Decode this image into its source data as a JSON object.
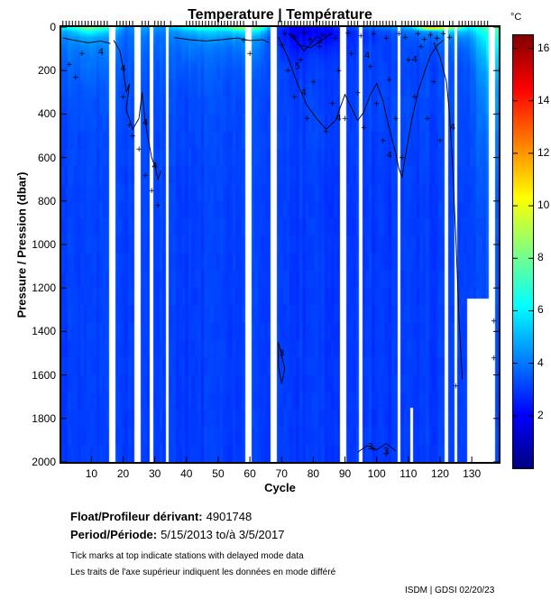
{
  "title": "Temperature | Température",
  "axes": {
    "x_label": "Cycle",
    "y_label": "Pressure / Pression (dbar)",
    "x_ticks": [
      10,
      20,
      30,
      40,
      50,
      60,
      70,
      80,
      90,
      100,
      110,
      120,
      130
    ],
    "y_ticks": [
      0,
      200,
      400,
      600,
      800,
      1000,
      1200,
      1400,
      1600,
      1800,
      2000
    ],
    "x_range": [
      1,
      138
    ],
    "y_range": [
      0,
      2000
    ]
  },
  "colorbar": {
    "label": "°C",
    "ticks": [
      2,
      4,
      6,
      8,
      10,
      12,
      14,
      16
    ],
    "range": [
      0,
      16.5
    ],
    "colormap": "jet"
  },
  "footer": {
    "float_label": "Float/Profileur dérivant:",
    "float_value": "4901748",
    "period_label": "Period/Période:",
    "period_value": "5/15/2013 to/à 3/5/2017",
    "note_en": "Tick marks at top indicate stations with delayed mode data",
    "note_fr": "Les traits de l'axe supérieur indiquent les données en mode différé",
    "credit": "ISDM | GDSI 02/20/23"
  },
  "chart_data": {
    "type": "heatmap",
    "title": "Temperature | Température",
    "xlabel": "Cycle",
    "ylabel": "Pressure / Pression (dbar)",
    "value_unit": "°C",
    "clim": [
      0,
      16.5
    ],
    "colormap": "jet",
    "x_range": [
      1,
      138
    ],
    "y_range": [
      0,
      2000
    ],
    "pressure_levels": [
      0,
      20,
      50,
      100,
      150,
      200,
      300,
      500,
      800,
      2000
    ],
    "cycle_bin_centers": [
      3,
      9,
      15,
      21,
      27,
      33,
      39,
      45,
      51,
      57,
      63,
      69,
      75,
      81,
      87,
      93,
      99,
      105,
      111,
      117,
      123,
      129,
      135
    ],
    "temperature_grid": [
      [
        6.5,
        5.0,
        4.3,
        4.0,
        3.8,
        3.6,
        3.4,
        3.2,
        3.1,
        3.0
      ],
      [
        8.5,
        6.5,
        4.8,
        4.2,
        3.9,
        3.7,
        3.4,
        3.2,
        3.1,
        3.0
      ],
      [
        7.5,
        5.5,
        4.5,
        4.0,
        3.8,
        3.6,
        3.4,
        3.2,
        3.1,
        3.0
      ],
      [
        4.2,
        3.9,
        3.7,
        3.6,
        3.5,
        3.4,
        3.3,
        3.2,
        3.1,
        3.0
      ],
      [
        5.0,
        4.3,
        3.9,
        3.7,
        3.5,
        3.4,
        3.3,
        3.2,
        3.1,
        3.0
      ],
      [
        4.5,
        4.0,
        3.8,
        3.6,
        3.5,
        3.4,
        3.3,
        3.2,
        3.1,
        3.0
      ],
      [
        6.5,
        5.0,
        4.3,
        3.9,
        3.7,
        3.5,
        3.3,
        3.2,
        3.1,
        3.0
      ],
      [
        7.5,
        5.5,
        4.5,
        4.0,
        3.7,
        3.5,
        3.3,
        3.2,
        3.1,
        3.0
      ],
      [
        7.0,
        5.3,
        4.4,
        3.9,
        3.7,
        3.5,
        3.3,
        3.2,
        3.1,
        3.0
      ],
      [
        9.5,
        6.0,
        4.6,
        4.0,
        3.7,
        3.5,
        3.3,
        3.2,
        3.1,
        3.0
      ],
      [
        8.0,
        5.8,
        4.5,
        4.0,
        3.7,
        3.5,
        3.3,
        3.2,
        3.1,
        3.0
      ],
      [
        3.0,
        2.6,
        2.6,
        2.9,
        3.0,
        3.1,
        3.1,
        3.1,
        3.0,
        3.0
      ],
      [
        2.0,
        1.8,
        2.1,
        2.5,
        2.8,
        3.0,
        3.1,
        3.1,
        3.0,
        3.0
      ],
      [
        2.4,
        2.0,
        2.2,
        2.6,
        2.9,
        3.0,
        3.1,
        3.1,
        3.0,
        3.0
      ],
      [
        3.0,
        2.4,
        2.5,
        2.8,
        3.0,
        3.1,
        3.1,
        3.1,
        3.0,
        3.0
      ],
      [
        3.5,
        2.8,
        2.8,
        3.0,
        3.1,
        3.1,
        3.1,
        3.1,
        3.0,
        3.0
      ],
      [
        4.0,
        3.2,
        3.0,
        3.1,
        3.1,
        3.1,
        3.2,
        3.1,
        3.0,
        3.0
      ],
      [
        4.5,
        3.5,
        3.2,
        3.1,
        3.1,
        3.1,
        3.2,
        3.1,
        3.0,
        3.0
      ],
      [
        5.5,
        4.0,
        3.5,
        3.2,
        3.2,
        3.1,
        3.2,
        3.1,
        3.0,
        3.0
      ],
      [
        12.5,
        4.5,
        3.7,
        3.3,
        3.2,
        3.1,
        3.2,
        3.1,
        3.0,
        3.0
      ],
      [
        10.0,
        5.5,
        4.0,
        3.5,
        3.3,
        3.2,
        3.2,
        3.1,
        3.0,
        3.0
      ],
      [
        6.0,
        5.0,
        4.2,
        3.6,
        3.4,
        3.3,
        3.2,
        3.1,
        3.0,
        3.0
      ],
      [
        8.0,
        7.0,
        6.5,
        6.0,
        5.5,
        5.0,
        4.5,
        4.0,
        3.5,
        3.1
      ]
    ],
    "missing_cycles": [
      16,
      17,
      24,
      25,
      29,
      34,
      59,
      60,
      67,
      68,
      89,
      90,
      95,
      107,
      122,
      125,
      136,
      137
    ],
    "depth_limited_cycles": {
      "111": 1750,
      "129": 1250,
      "130": 1250,
      "131": 1250,
      "132": 1250,
      "133": 1250,
      "134": 1250,
      "135": 1250
    },
    "delayed_mode_tick_ranges": [
      [
        1,
        35
      ],
      [
        40,
        62
      ],
      [
        69,
        135
      ]
    ],
    "contour_lines": [
      {
        "level": 4,
        "points": [
          [
            1,
            50
          ],
          [
            5,
            62
          ],
          [
            9,
            72
          ],
          [
            13,
            64
          ],
          [
            16,
            76
          ]
        ]
      },
      {
        "level": 4,
        "points": [
          [
            17,
            60
          ],
          [
            19,
            110
          ],
          [
            20,
            190
          ],
          [
            21,
            300
          ],
          [
            22,
            260
          ],
          [
            21,
            380
          ],
          [
            23,
            470
          ],
          [
            25,
            420
          ],
          [
            26,
            300
          ],
          [
            27,
            440
          ],
          [
            28,
            520
          ],
          [
            29,
            600
          ],
          [
            30,
            640
          ],
          [
            31,
            700
          ],
          [
            32,
            660
          ]
        ]
      },
      {
        "level": 4,
        "points": [
          [
            36,
            48
          ],
          [
            41,
            58
          ],
          [
            46,
            64
          ],
          [
            51,
            58
          ],
          [
            56,
            50
          ],
          [
            60,
            62
          ],
          [
            64,
            58
          ],
          [
            66,
            72
          ]
        ]
      },
      {
        "level": 4,
        "points": [
          [
            69,
            45
          ],
          [
            72,
            140
          ],
          [
            75,
            260
          ],
          [
            78,
            360
          ],
          [
            81,
            420
          ],
          [
            84,
            470
          ],
          [
            87,
            430
          ],
          [
            90,
            310
          ],
          [
            92,
            370
          ],
          [
            94,
            430
          ],
          [
            96,
            390
          ],
          [
            98,
            310
          ],
          [
            100,
            260
          ],
          [
            102,
            340
          ],
          [
            104,
            470
          ],
          [
            106,
            580
          ],
          [
            107,
            650
          ],
          [
            108,
            690
          ],
          [
            109,
            600
          ],
          [
            111,
            430
          ],
          [
            113,
            300
          ],
          [
            115,
            210
          ],
          [
            117,
            130
          ],
          [
            119,
            85
          ],
          [
            121,
            60
          ]
        ]
      },
      {
        "level": 2,
        "points": [
          [
            72,
            28
          ],
          [
            74,
            55
          ],
          [
            76,
            85
          ],
          [
            79,
            95
          ],
          [
            82,
            70
          ],
          [
            84,
            45
          ],
          [
            86,
            28
          ]
        ]
      },
      {
        "level": 5,
        "points": [
          [
            73,
            30
          ],
          [
            75,
            70
          ],
          [
            77,
            110
          ],
          [
            79,
            80
          ],
          [
            81,
            45
          ]
        ]
      },
      {
        "level": 3,
        "points": [
          [
            69,
            1450
          ],
          [
            70,
            1510
          ],
          [
            71,
            1570
          ],
          [
            70,
            1640
          ],
          [
            69,
            1560
          ],
          [
            69,
            1450
          ]
        ]
      },
      {
        "level": 3,
        "points": [
          [
            94,
            1955
          ],
          [
            97,
            1925
          ],
          [
            100,
            1945
          ],
          [
            103,
            1915
          ],
          [
            106,
            1950
          ]
        ]
      },
      {
        "level": 4,
        "points": [
          [
            118,
            70
          ],
          [
            120,
            140
          ],
          [
            122,
            250
          ],
          [
            123,
            400
          ],
          [
            124,
            650
          ],
          [
            125,
            980
          ],
          [
            126,
            1350
          ],
          [
            127,
            1620
          ]
        ]
      }
    ],
    "contour_labels": [
      {
        "c": 13,
        "p": 115,
        "text": "4"
      },
      {
        "c": 20,
        "p": 190,
        "text": "4"
      },
      {
        "c": 27,
        "p": 440,
        "text": "4"
      },
      {
        "c": 30,
        "p": 640,
        "text": "4"
      },
      {
        "c": 82,
        "p": 60,
        "text": "2"
      },
      {
        "c": 75,
        "p": 180,
        "text": "5"
      },
      {
        "c": 77,
        "p": 300,
        "text": "4"
      },
      {
        "c": 88,
        "p": 420,
        "text": "4"
      },
      {
        "c": 97,
        "p": 130,
        "text": "4"
      },
      {
        "c": 104,
        "p": 590,
        "text": "4"
      },
      {
        "c": 70,
        "p": 1500,
        "text": "3"
      },
      {
        "c": 98,
        "p": 1930,
        "text": "3"
      },
      {
        "c": 103,
        "p": 1950,
        "text": "3"
      },
      {
        "c": 112,
        "p": 150,
        "text": "4"
      },
      {
        "c": 124,
        "p": 460,
        "text": "4"
      }
    ],
    "plus_markers": [
      [
        3,
        170
      ],
      [
        5,
        230
      ],
      [
        7,
        120
      ],
      [
        20,
        320
      ],
      [
        22,
        450
      ],
      [
        23,
        500
      ],
      [
        25,
        560
      ],
      [
        27,
        680
      ],
      [
        29,
        750
      ],
      [
        31,
        820
      ],
      [
        58,
        60
      ],
      [
        60,
        120
      ],
      [
        70,
        80
      ],
      [
        72,
        200
      ],
      [
        74,
        320
      ],
      [
        76,
        150
      ],
      [
        78,
        420
      ],
      [
        80,
        250
      ],
      [
        82,
        90
      ],
      [
        84,
        480
      ],
      [
        86,
        350
      ],
      [
        88,
        200
      ],
      [
        90,
        420
      ],
      [
        92,
        120
      ],
      [
        94,
        300
      ],
      [
        96,
        460
      ],
      [
        98,
        180
      ],
      [
        100,
        350
      ],
      [
        102,
        520
      ],
      [
        104,
        240
      ],
      [
        106,
        420
      ],
      [
        108,
        600
      ],
      [
        110,
        150
      ],
      [
        112,
        320
      ],
      [
        114,
        90
      ],
      [
        116,
        420
      ],
      [
        118,
        250
      ],
      [
        120,
        520
      ],
      [
        71,
        30
      ],
      [
        74,
        45
      ],
      [
        77,
        25
      ],
      [
        79,
        55
      ],
      [
        83,
        35
      ],
      [
        87,
        50
      ],
      [
        91,
        28
      ],
      [
        95,
        40
      ],
      [
        99,
        30
      ],
      [
        103,
        50
      ],
      [
        107,
        30
      ],
      [
        109,
        45
      ],
      [
        113,
        30
      ],
      [
        115,
        55
      ],
      [
        117,
        35
      ],
      [
        119,
        50
      ],
      [
        121,
        30
      ],
      [
        123,
        45
      ],
      [
        125,
        1650
      ],
      [
        99,
        1940
      ],
      [
        103,
        1960
      ],
      [
        137,
        1350
      ],
      [
        137,
        1520
      ]
    ]
  }
}
